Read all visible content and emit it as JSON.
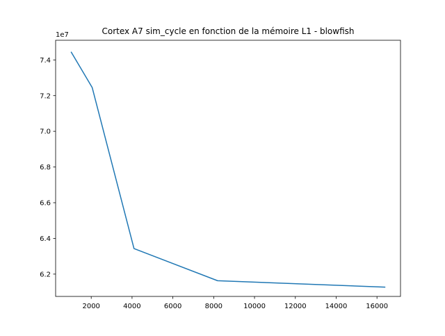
{
  "colors": {
    "line": "#1f77b4",
    "axes": "#000000",
    "background": "#ffffff"
  },
  "chart_data": {
    "type": "line",
    "title": "Cortex A7 sim_cycle en fonction de la mémoire L1 - blowfish",
    "xlabel": "",
    "ylabel": "",
    "offset_label": "1e7",
    "x_ticks": [
      2000,
      4000,
      6000,
      8000,
      10000,
      12000,
      14000,
      16000
    ],
    "y_ticks": [
      6.2,
      6.4,
      6.6,
      6.8,
      7.0,
      7.2,
      7.4
    ],
    "x_tick_labels": [
      "2000",
      "4000",
      "6000",
      "8000",
      "10000",
      "12000",
      "14000",
      "16000"
    ],
    "y_tick_labels": [
      "6.2",
      "6.4",
      "6.6",
      "6.8",
      "7.0",
      "7.2",
      "7.4"
    ],
    "xlim": [
      256,
      17152
    ],
    "ylim": [
      6.075,
      7.51
    ],
    "grid": false,
    "series": [
      {
        "x": [
          1024,
          2048,
          4096,
          8192,
          16384
        ],
        "y": [
          7.443,
          7.245,
          6.343,
          6.163,
          6.127
        ]
      }
    ]
  }
}
